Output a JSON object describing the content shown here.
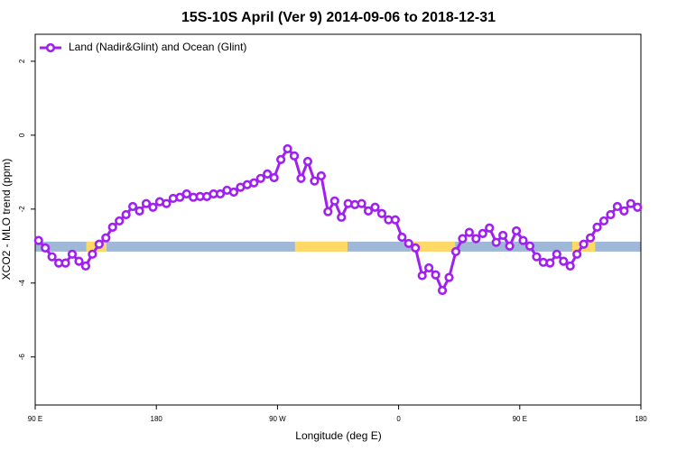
{
  "chart_data": {
    "type": "line",
    "title": "15S-10S April (Ver 9)   2014-09-06 to 2018-12-31",
    "xlabel": "Longitude (deg E)",
    "ylabel": "XCO2 - MLO trend (ppm)",
    "xlim": [
      90,
      540
    ],
    "ylim": [
      -7.3,
      2.73
    ],
    "xticks": [
      {
        "value": 90,
        "label": "90 E"
      },
      180,
      {
        "value": 270,
        "label": "90 W"
      },
      {
        "value": 360,
        "label": "0"
      },
      {
        "value": 450,
        "label": "90 E"
      },
      {
        "value": 540,
        "label": "180"
      }
    ],
    "yticks": [
      2,
      0,
      -2,
      -4,
      -6
    ],
    "legend": "top-left",
    "x": [
      92.5,
      97.5,
      102.5,
      107.5,
      112.5,
      117.5,
      122.5,
      127.5,
      132.5,
      137.5,
      142.5,
      147.5,
      152.5,
      157.5,
      162.5,
      167.5,
      172.5,
      177.5,
      182.5,
      187.5,
      192.5,
      197.5,
      202.5,
      207.5,
      212.5,
      217.5,
      222.5,
      227.5,
      232.5,
      237.5,
      242.5,
      247.5,
      252.5,
      257.5,
      262.5,
      267.5,
      272.5,
      277.5,
      282.5,
      287.5,
      292.5,
      297.5,
      302.5,
      307.5,
      312.5,
      317.5,
      322.5,
      327.5,
      332.5,
      337.5,
      342.5,
      347.5,
      352.5,
      357.5,
      362.5,
      367.5,
      372.5,
      377.5,
      382.5,
      387.5,
      392.5,
      397.5,
      402.5,
      407.5,
      412.5,
      417.5,
      422.5,
      427.5,
      432.5,
      437.5,
      442.5,
      447.5,
      452.5,
      457.5,
      462.5,
      467.5,
      472.5,
      477.5,
      482.5,
      487.5,
      492.5,
      497.5,
      502.5,
      507.5,
      512.5,
      517.5,
      522.5,
      527.5,
      532.5,
      537.5
    ],
    "series": [
      {
        "name": "Land (Nadir&Glint) and Ocean (Glint)",
        "color": "#a020f0",
        "values": [
          -2.85,
          -3.05,
          -3.29,
          -3.46,
          -3.46,
          -3.22,
          -3.41,
          -3.54,
          -3.22,
          -2.95,
          -2.78,
          -2.49,
          -2.32,
          -2.15,
          -1.93,
          -2.05,
          -1.85,
          -1.95,
          -1.8,
          -1.85,
          -1.71,
          -1.68,
          -1.59,
          -1.68,
          -1.66,
          -1.66,
          -1.59,
          -1.59,
          -1.49,
          -1.54,
          -1.41,
          -1.34,
          -1.29,
          -1.17,
          -1.05,
          -1.15,
          -0.66,
          -0.37,
          -0.56,
          -1.17,
          -0.71,
          -1.24,
          -1.1,
          -2.07,
          -1.78,
          -2.22,
          -1.85,
          -1.88,
          -1.85,
          -2.05,
          -1.95,
          -2.12,
          -2.29,
          -2.29,
          -2.76,
          -2.93,
          -3.05,
          -3.8,
          -3.59,
          -3.78,
          -4.2,
          -3.85,
          -3.15,
          -2.8,
          -2.63,
          -2.8,
          -2.66,
          -2.51,
          -2.9,
          -2.71,
          -3.0,
          -2.59,
          -2.85,
          -3.0,
          -3.29,
          -3.44,
          -3.46,
          -3.22,
          -3.41,
          -3.54,
          -3.22,
          -2.95,
          -2.78,
          -2.49,
          -2.32,
          -2.15,
          -1.93,
          -2.05,
          -1.85,
          -1.95
        ]
      }
    ],
    "surface_band": {
      "ylim": [
        -3.15,
        -2.88
      ],
      "ocean_color": "#9fb8d8",
      "land_color": "#ffd966",
      "land": [
        [
          128,
          143
        ],
        [
          283,
          322
        ],
        [
          369,
          402
        ],
        [
          489,
          506
        ]
      ]
    }
  }
}
